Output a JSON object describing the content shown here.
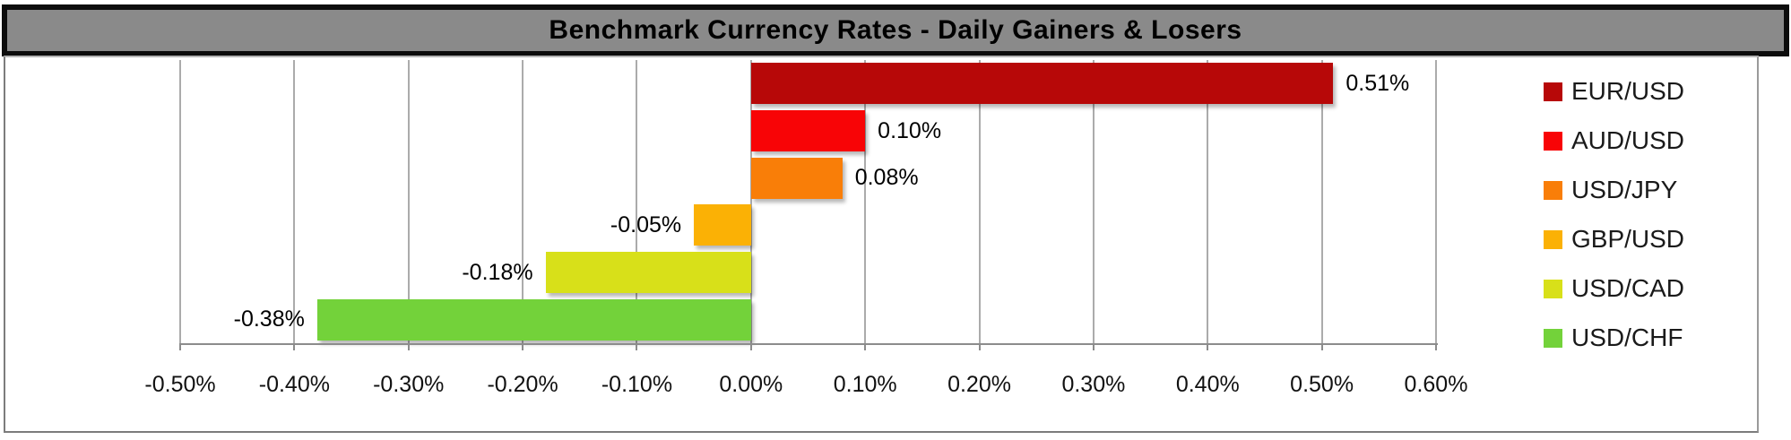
{
  "title": "Benchmark Currency Rates - Daily Gainers & Losers",
  "chart_data": {
    "type": "bar",
    "orientation": "horizontal",
    "title": "Benchmark Currency Rates - Daily Gainers & Losers",
    "series": [
      {
        "name": "EUR/USD",
        "value": 0.51,
        "label": "0.51%",
        "color": "#B70808"
      },
      {
        "name": "AUD/USD",
        "value": 0.1,
        "label": "0.10%",
        "color": "#F80406"
      },
      {
        "name": "USD/JPY",
        "value": 0.08,
        "label": "0.08%",
        "color": "#F97E08"
      },
      {
        "name": "GBP/USD",
        "value": -0.05,
        "label": "-0.05%",
        "color": "#FBB105"
      },
      {
        "name": "USD/CAD",
        "value": -0.18,
        "label": "-0.18%",
        "color": "#D8E019"
      },
      {
        "name": "USD/CHF",
        "value": -0.38,
        "label": "-0.38%",
        "color": "#73D23A"
      }
    ],
    "x_ticks": [
      {
        "value": -0.5,
        "label": "-0.50%"
      },
      {
        "value": -0.4,
        "label": "-0.40%"
      },
      {
        "value": -0.3,
        "label": "-0.30%"
      },
      {
        "value": -0.2,
        "label": "-0.20%"
      },
      {
        "value": -0.1,
        "label": "-0.10%"
      },
      {
        "value": 0.0,
        "label": "0.00%"
      },
      {
        "value": 0.1,
        "label": "0.10%"
      },
      {
        "value": 0.2,
        "label": "0.20%"
      },
      {
        "value": 0.3,
        "label": "0.30%"
      },
      {
        "value": 0.4,
        "label": "0.40%"
      },
      {
        "value": 0.5,
        "label": "0.50%"
      },
      {
        "value": 0.6,
        "label": "0.60%"
      }
    ],
    "xlim": [
      -0.5,
      0.6
    ],
    "grid": "vertical",
    "legend_position": "right"
  },
  "colors": {
    "title_bg": "#8A8A8A",
    "title_border": "#0D0D0D",
    "title_text": "#000000",
    "gridline": "#ABABAB",
    "axis_line": "#8C8C8C",
    "chart_border": "#7C7C7C",
    "background": "#FFFFFF",
    "label_text": "#000000"
  }
}
